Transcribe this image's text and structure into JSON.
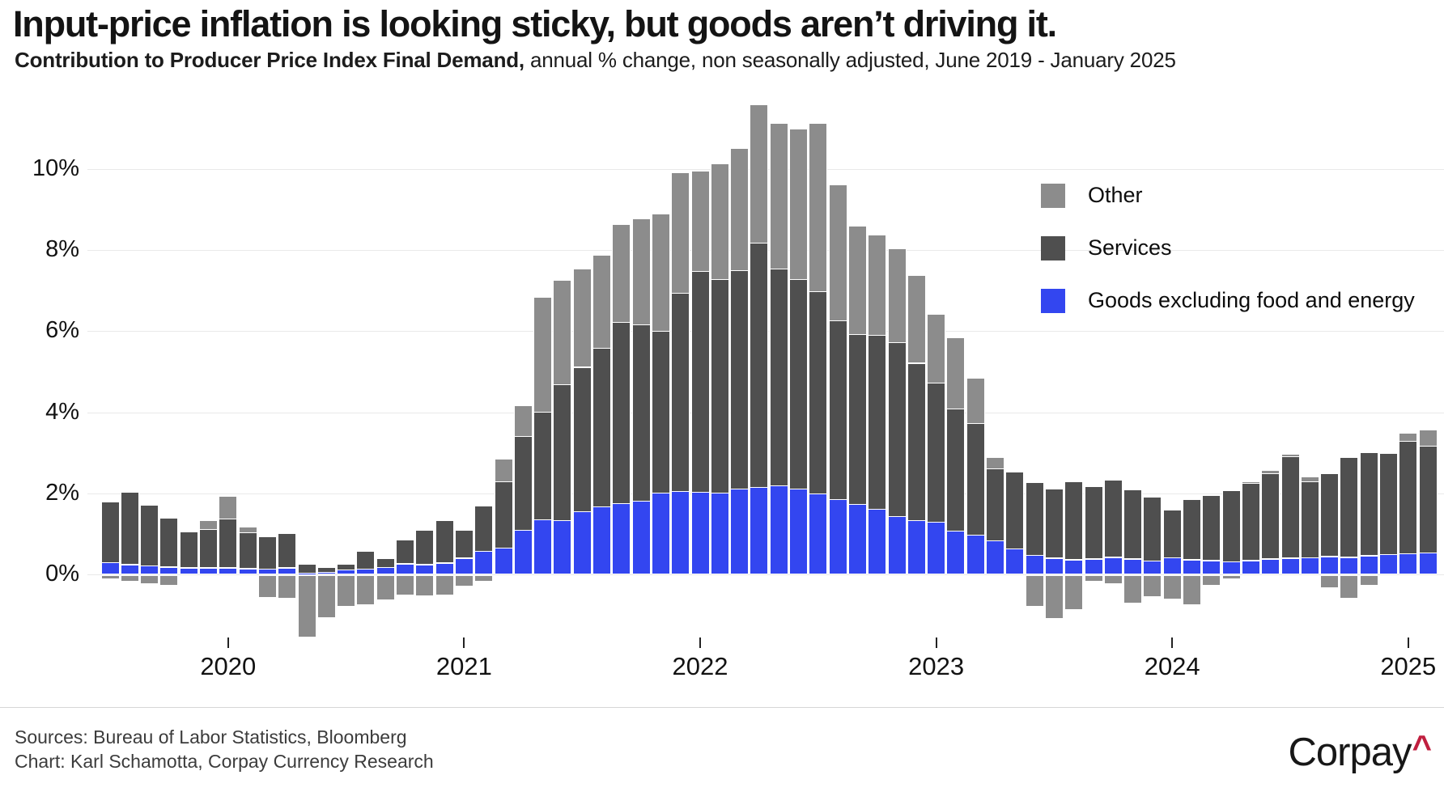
{
  "header": {
    "title": "Input-price inflation is looking sticky, but goods aren’t driving it.",
    "subtitle_bold": "Contribution to Producer Price Index Final Demand,",
    "subtitle_rest": " annual % change, non seasonally adjusted, June 2019 - January 2025"
  },
  "footer": {
    "sources": "Sources: Bureau of Labor Statistics, Bloomberg",
    "credit": "Chart: Karl Schamotta, Corpay Currency Research",
    "logo_text": "Corpay",
    "logo_caret": "^"
  },
  "chart_data": {
    "type": "bar",
    "stacked": true,
    "title": "Contribution to Producer Price Index Final Demand",
    "unit": "percentage points, annual % change",
    "x": [
      "2019-06",
      "2019-07",
      "2019-08",
      "2019-09",
      "2019-10",
      "2019-11",
      "2019-12",
      "2020-01",
      "2020-02",
      "2020-03",
      "2020-04",
      "2020-05",
      "2020-06",
      "2020-07",
      "2020-08",
      "2020-09",
      "2020-10",
      "2020-11",
      "2020-12",
      "2021-01",
      "2021-02",
      "2021-03",
      "2021-04",
      "2021-05",
      "2021-06",
      "2021-07",
      "2021-08",
      "2021-09",
      "2021-10",
      "2021-11",
      "2021-12",
      "2022-01",
      "2022-02",
      "2022-03",
      "2022-04",
      "2022-05",
      "2022-06",
      "2022-07",
      "2022-08",
      "2022-09",
      "2022-10",
      "2022-11",
      "2022-12",
      "2023-01",
      "2023-02",
      "2023-03",
      "2023-04",
      "2023-05",
      "2023-06",
      "2023-07",
      "2023-08",
      "2023-09",
      "2023-10",
      "2023-11",
      "2023-12",
      "2024-01",
      "2024-02",
      "2024-03",
      "2024-04",
      "2024-05",
      "2024-06",
      "2024-07",
      "2024-08",
      "2024-09",
      "2024-10",
      "2024-11",
      "2024-12",
      "2025-01"
    ],
    "series": [
      {
        "id": "goods",
        "name": "Goods excluding food and energy",
        "color": "#3346f0",
        "values": [
          0.28,
          0.23,
          0.2,
          0.17,
          0.15,
          0.15,
          0.15,
          0.13,
          0.12,
          0.15,
          0.03,
          0.04,
          0.1,
          0.12,
          0.16,
          0.25,
          0.23,
          0.27,
          0.39,
          0.55,
          0.63,
          1.07,
          1.34,
          1.31,
          1.54,
          1.66,
          1.73,
          1.8,
          2.0,
          2.04,
          2.02,
          2.0,
          2.09,
          2.13,
          2.18,
          2.09,
          1.98,
          1.84,
          1.72,
          1.6,
          1.42,
          1.31,
          1.27,
          1.06,
          0.95,
          0.81,
          0.61,
          0.46,
          0.39,
          0.35,
          0.37,
          0.41,
          0.37,
          0.32,
          0.4,
          0.35,
          0.33,
          0.3,
          0.33,
          0.37,
          0.39,
          0.4,
          0.43,
          0.41,
          0.45,
          0.48,
          0.5,
          0.52
        ]
      },
      {
        "id": "services",
        "name": "Services",
        "color": "#4f4f4f",
        "values": [
          1.5,
          1.78,
          1.49,
          1.2,
          0.88,
          0.95,
          1.2,
          0.88,
          0.8,
          0.85,
          0.22,
          0.12,
          0.15,
          0.43,
          0.23,
          0.58,
          0.84,
          1.04,
          0.68,
          1.13,
          1.65,
          2.32,
          2.65,
          3.36,
          3.56,
          3.91,
          4.47,
          4.34,
          3.98,
          4.89,
          5.45,
          5.27,
          5.4,
          6.04,
          5.35,
          5.18,
          4.99,
          4.41,
          4.19,
          4.29,
          4.28,
          3.89,
          3.44,
          3.02,
          2.77,
          1.78,
          1.9,
          1.8,
          1.7,
          1.93,
          1.79,
          1.91,
          1.7,
          1.58,
          1.17,
          1.48,
          1.6,
          1.75,
          1.9,
          2.11,
          2.51,
          1.87,
          2.05,
          2.46,
          2.55,
          2.49,
          2.77,
          2.63
        ]
      },
      {
        "id": "other",
        "name": "Other",
        "color": "#8c8c8c",
        "values": [
          -0.05,
          -0.11,
          -0.17,
          -0.21,
          0.0,
          0.22,
          0.57,
          0.14,
          -0.52,
          -0.54,
          -1.5,
          -1.01,
          -0.74,
          -0.7,
          -0.58,
          -0.46,
          -0.48,
          -0.46,
          -0.23,
          -0.12,
          0.56,
          0.76,
          2.83,
          2.57,
          2.43,
          2.3,
          2.42,
          2.63,
          2.9,
          2.97,
          2.47,
          2.86,
          3.01,
          3.4,
          3.58,
          3.71,
          4.14,
          3.36,
          2.68,
          2.48,
          2.33,
          2.16,
          1.7,
          1.74,
          1.11,
          0.29,
          0.0,
          -0.73,
          -1.04,
          -0.81,
          -0.12,
          -0.18,
          -0.66,
          -0.5,
          -0.55,
          -0.7,
          -0.21,
          -0.05,
          0.04,
          0.07,
          0.05,
          0.13,
          -0.28,
          -0.54,
          -0.21,
          0.0,
          0.21,
          0.4
        ]
      }
    ],
    "y_ticks": [
      {
        "label": "0%",
        "value": 0
      },
      {
        "label": "2%",
        "value": 2
      },
      {
        "label": "4%",
        "value": 4
      },
      {
        "label": "6%",
        "value": 6
      },
      {
        "label": "8%",
        "value": 8
      },
      {
        "label": "10%",
        "value": 10
      }
    ],
    "x_ticks": [
      {
        "label": "2020",
        "month_index": 6
      },
      {
        "label": "2021",
        "month_index": 18
      },
      {
        "label": "2022",
        "month_index": 30
      },
      {
        "label": "2023",
        "month_index": 42
      },
      {
        "label": "2024",
        "month_index": 54
      },
      {
        "label": "2025",
        "month_index": 66
      }
    ],
    "ylim": [
      -1.7,
      11.8
    ],
    "grid": true,
    "legend_position": "upper-right",
    "legend_order": [
      "other",
      "services",
      "goods"
    ]
  }
}
